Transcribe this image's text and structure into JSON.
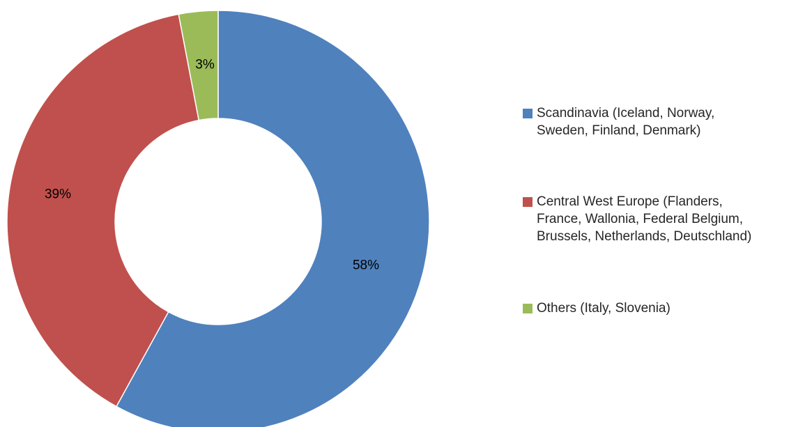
{
  "chart_data": {
    "type": "pie",
    "variant": "donut",
    "title": "",
    "slices": [
      {
        "name": "Scandinavia (Iceland, Norway,\nSweden, Finland, Denmark)",
        "value": 58,
        "label": "58%",
        "color": "#4F81BD"
      },
      {
        "name": "Central West Europe (Flanders,\nFrance, Wallonia, Federal Belgium,\nBrussels, Netherlands, Deutschland)",
        "value": 39,
        "label": "39%",
        "color": "#C0504D"
      },
      {
        "name": "Others (Italy, Slovenia)",
        "value": 3,
        "label": "3%",
        "color": "#9BBB59"
      }
    ],
    "legend_position": "right"
  }
}
